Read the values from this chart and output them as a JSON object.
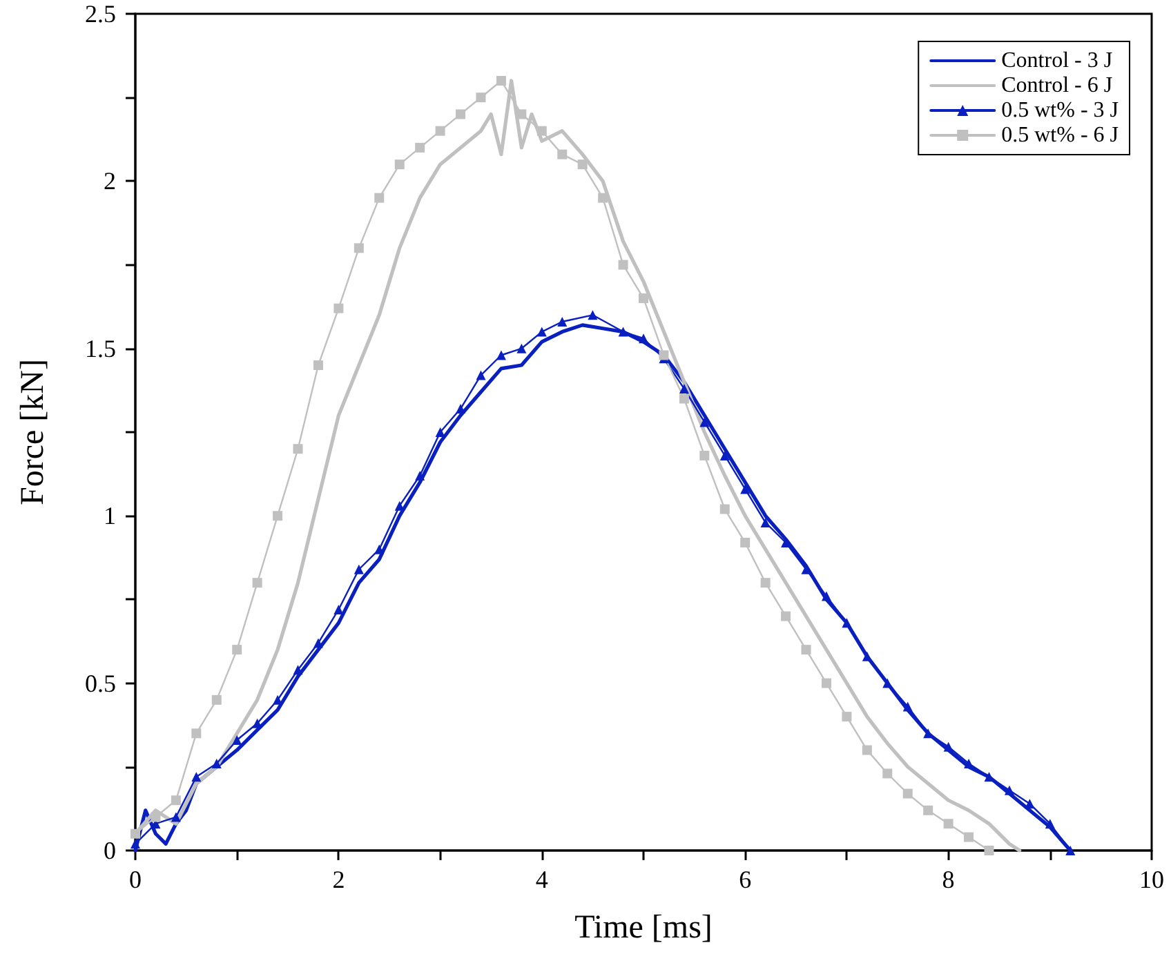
{
  "chart_data": {
    "type": "line",
    "xlabel": "Time [ms]",
    "ylabel": "Force [kN]",
    "xlim": [
      0,
      10
    ],
    "xticks": [
      0,
      2,
      4,
      6,
      8,
      10
    ],
    "ylim": [
      0,
      2.5
    ],
    "yticks": [
      0,
      0.5,
      1,
      1.5,
      2,
      2.5
    ],
    "grid": false,
    "legend": "top right",
    "series": [
      {
        "name": "Control - 3 J",
        "color": "#0a1fbf",
        "marker": "none",
        "x": [
          0,
          0.1,
          0.2,
          0.3,
          0.4,
          0.5,
          0.6,
          0.8,
          1.0,
          1.2,
          1.4,
          1.6,
          1.8,
          2.0,
          2.2,
          2.4,
          2.6,
          2.8,
          3.0,
          3.2,
          3.4,
          3.6,
          3.8,
          4.0,
          4.2,
          4.4,
          4.6,
          4.8,
          5.0,
          5.2,
          5.4,
          5.6,
          5.8,
          6.0,
          6.2,
          6.4,
          6.6,
          6.8,
          7.0,
          7.2,
          7.4,
          7.6,
          7.8,
          8.0,
          8.2,
          8.4,
          8.6,
          8.8,
          9.0,
          9.2
        ],
        "values": [
          0,
          0.12,
          0.05,
          0.02,
          0.08,
          0.12,
          0.2,
          0.25,
          0.3,
          0.36,
          0.42,
          0.52,
          0.6,
          0.68,
          0.8,
          0.87,
          1.0,
          1.1,
          1.22,
          1.3,
          1.37,
          1.44,
          1.45,
          1.52,
          1.55,
          1.57,
          1.56,
          1.55,
          1.52,
          1.48,
          1.4,
          1.3,
          1.2,
          1.1,
          1.0,
          0.93,
          0.85,
          0.75,
          0.68,
          0.58,
          0.5,
          0.42,
          0.35,
          0.3,
          0.25,
          0.22,
          0.17,
          0.12,
          0.07,
          0
        ]
      },
      {
        "name": "Control - 6 J",
        "color": "#c0c0c0",
        "marker": "none",
        "x": [
          0,
          0.2,
          0.4,
          0.6,
          0.8,
          1.0,
          1.2,
          1.4,
          1.6,
          1.8,
          2.0,
          2.2,
          2.4,
          2.6,
          2.8,
          3.0,
          3.2,
          3.4,
          3.5,
          3.6,
          3.7,
          3.8,
          3.9,
          4.0,
          4.2,
          4.4,
          4.6,
          4.8,
          5.0,
          5.2,
          5.4,
          5.6,
          5.8,
          6.0,
          6.2,
          6.4,
          6.6,
          6.8,
          7.0,
          7.2,
          7.4,
          7.6,
          7.8,
          8.0,
          8.2,
          8.4,
          8.6,
          8.7
        ],
        "values": [
          0.05,
          0.12,
          0.08,
          0.2,
          0.25,
          0.35,
          0.45,
          0.6,
          0.8,
          1.05,
          1.3,
          1.45,
          1.6,
          1.8,
          1.95,
          2.05,
          2.1,
          2.15,
          2.2,
          2.08,
          2.3,
          2.1,
          2.2,
          2.12,
          2.15,
          2.08,
          2.0,
          1.82,
          1.7,
          1.55,
          1.4,
          1.25,
          1.12,
          1.0,
          0.9,
          0.8,
          0.7,
          0.6,
          0.5,
          0.4,
          0.32,
          0.25,
          0.2,
          0.15,
          0.12,
          0.08,
          0.02,
          0
        ]
      },
      {
        "name": "0.5 wt% - 3 J",
        "color": "#0a1fbf",
        "marker": "triangle",
        "x": [
          0,
          0.2,
          0.4,
          0.6,
          0.8,
          1.0,
          1.2,
          1.4,
          1.6,
          1.8,
          2.0,
          2.2,
          2.4,
          2.6,
          2.8,
          3.0,
          3.2,
          3.4,
          3.6,
          3.8,
          4.0,
          4.2,
          4.5,
          4.8,
          5.0,
          5.2,
          5.4,
          5.6,
          5.8,
          6.0,
          6.2,
          6.4,
          6.6,
          6.8,
          7.0,
          7.2,
          7.4,
          7.6,
          7.8,
          8.0,
          8.2,
          8.4,
          8.6,
          8.8,
          9.0,
          9.2
        ],
        "values": [
          0.02,
          0.08,
          0.1,
          0.22,
          0.26,
          0.33,
          0.38,
          0.45,
          0.54,
          0.62,
          0.72,
          0.84,
          0.9,
          1.03,
          1.12,
          1.25,
          1.32,
          1.42,
          1.48,
          1.5,
          1.55,
          1.58,
          1.6,
          1.55,
          1.53,
          1.47,
          1.38,
          1.28,
          1.18,
          1.08,
          0.98,
          0.92,
          0.84,
          0.76,
          0.68,
          0.58,
          0.5,
          0.43,
          0.35,
          0.31,
          0.26,
          0.22,
          0.18,
          0.14,
          0.08,
          0
        ]
      },
      {
        "name": "0.5 wt% - 6 J",
        "color": "#c0c0c0",
        "marker": "square",
        "x": [
          0,
          0.2,
          0.4,
          0.6,
          0.8,
          1.0,
          1.2,
          1.4,
          1.6,
          1.8,
          2.0,
          2.2,
          2.4,
          2.6,
          2.8,
          3.0,
          3.2,
          3.4,
          3.6,
          3.8,
          4.0,
          4.2,
          4.4,
          4.6,
          4.8,
          5.0,
          5.2,
          5.4,
          5.6,
          5.8,
          6.0,
          6.2,
          6.4,
          6.6,
          6.8,
          7.0,
          7.2,
          7.4,
          7.6,
          7.8,
          8.0,
          8.2,
          8.4
        ],
        "values": [
          0.05,
          0.1,
          0.15,
          0.35,
          0.45,
          0.6,
          0.8,
          1.0,
          1.2,
          1.45,
          1.62,
          1.8,
          1.95,
          2.05,
          2.1,
          2.15,
          2.2,
          2.25,
          2.3,
          2.2,
          2.15,
          2.08,
          2.05,
          1.95,
          1.75,
          1.65,
          1.48,
          1.35,
          1.18,
          1.02,
          0.92,
          0.8,
          0.7,
          0.6,
          0.5,
          0.4,
          0.3,
          0.23,
          0.17,
          0.12,
          0.08,
          0.04,
          0
        ]
      }
    ]
  }
}
